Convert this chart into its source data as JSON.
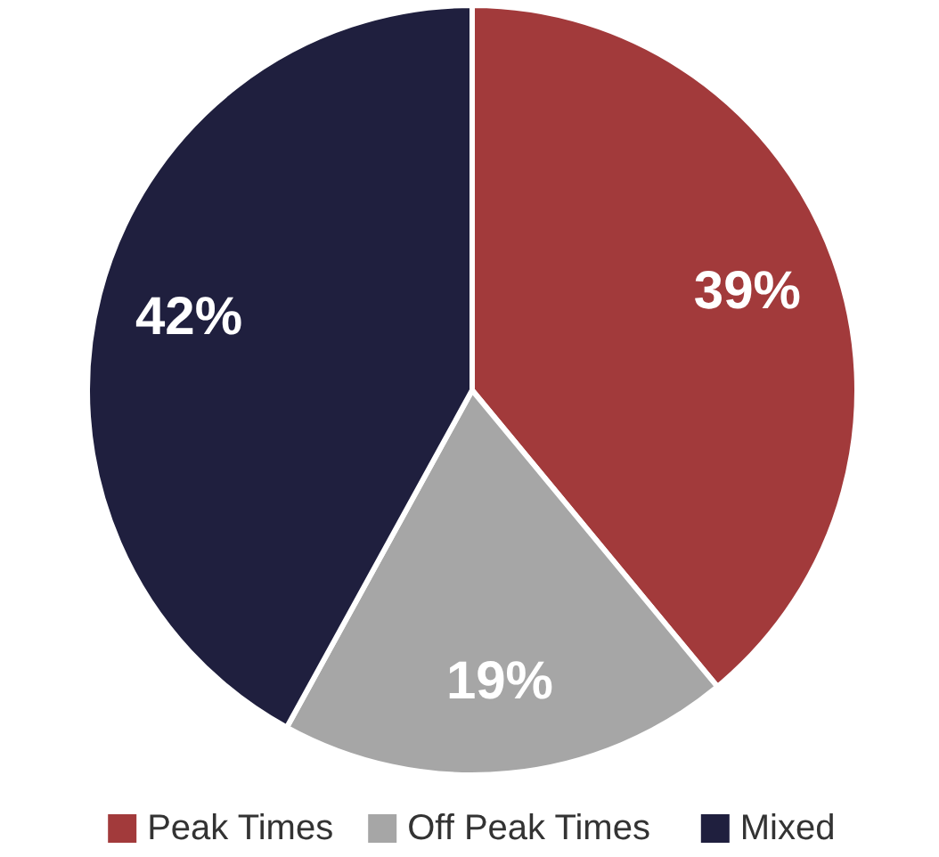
{
  "chart_data": {
    "type": "pie",
    "categories": [
      "Peak Times",
      "Off Peak Times",
      "Mixed"
    ],
    "values": [
      39,
      19,
      42
    ],
    "colors": [
      "#a23a3b",
      "#a6a6a6",
      "#1f1f3e"
    ],
    "value_labels": [
      "39%",
      "19%",
      "42%"
    ],
    "legend": "bottom"
  }
}
